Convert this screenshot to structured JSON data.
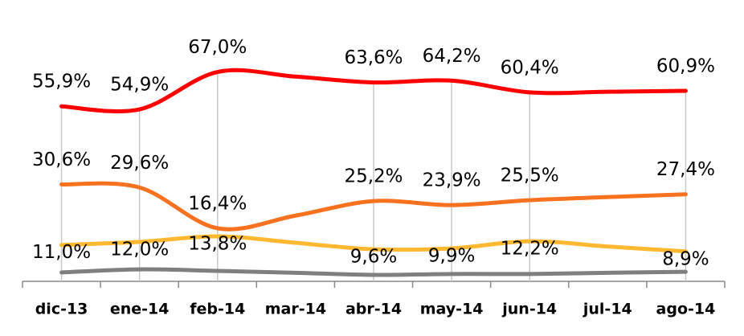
{
  "chart_data": {
    "type": "line",
    "categories": [
      "dic-13",
      "ene-14",
      "feb-14",
      "mar-14",
      "abr-14",
      "may-14",
      "jun-14",
      "jul-14",
      "ago-14"
    ],
    "ylim": [
      0,
      89
    ],
    "series": [
      {
        "color": "#ff0000",
        "values": [
          55.9,
          54.9,
          67.0,
          65.5,
          63.6,
          64.2,
          60.4,
          60.6,
          60.9
        ],
        "value_labels": [
          "55,9%",
          "54,9%",
          "67,0%",
          null,
          "63,6%",
          "64,2%",
          "60,4%",
          null,
          "60,9%"
        ]
      },
      {
        "color": "#f7711f",
        "values": [
          30.6,
          29.6,
          16.4,
          20.5,
          25.2,
          23.9,
          25.5,
          26.5,
          27.4
        ],
        "value_labels": [
          "30,6%",
          "29,6%",
          "16,4%",
          null,
          "25,2%",
          "23,9%",
          "25,5%",
          null,
          "27,4%"
        ]
      },
      {
        "color": "#ffb830",
        "values": [
          11.0,
          12.0,
          13.8,
          11.7,
          9.6,
          9.9,
          12.2,
          10.5,
          8.9
        ],
        "value_labels": [
          "11,0%",
          "12,0%",
          "13,8%",
          null,
          "9,6%",
          "9,9%",
          "12,2%",
          null,
          "8,9%"
        ]
      },
      {
        "color": "#7f7f7f",
        "values": [
          2.1,
          3.1,
          2.6,
          2.0,
          1.3,
          1.6,
          1.6,
          2.0,
          2.3
        ]
      }
    ]
  }
}
